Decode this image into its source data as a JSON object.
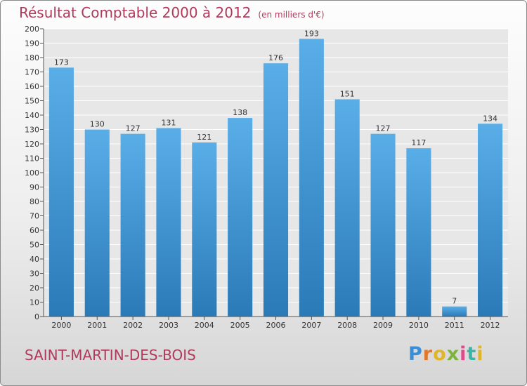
{
  "title": "Résultat Comptable 2000 à 2012",
  "unit": "(en milliers d'€)",
  "city": "SAINT-MARTIN-DES-BOIS",
  "logo": "Proxiti",
  "colors": {
    "title": "#b03a5b",
    "bar_top": "#5aaee8",
    "bar_bottom": "#2a7ab7",
    "plot_bg": "#e7e7e7",
    "grid": "#ffffff"
  },
  "chart_data": {
    "type": "bar",
    "title": "Résultat Comptable 2000 à 2012",
    "subtitle": "(en milliers d'€)",
    "categories": [
      "2000",
      "2001",
      "2002",
      "2003",
      "2004",
      "2005",
      "2006",
      "2007",
      "2008",
      "2009",
      "2010",
      "2011",
      "2012"
    ],
    "values": [
      173,
      130,
      127,
      131,
      121,
      138,
      176,
      193,
      151,
      127,
      117,
      7,
      134
    ],
    "ylim": [
      0,
      200
    ],
    "ytick_step": 10,
    "xlabel": "",
    "ylabel": "",
    "grid": true
  }
}
